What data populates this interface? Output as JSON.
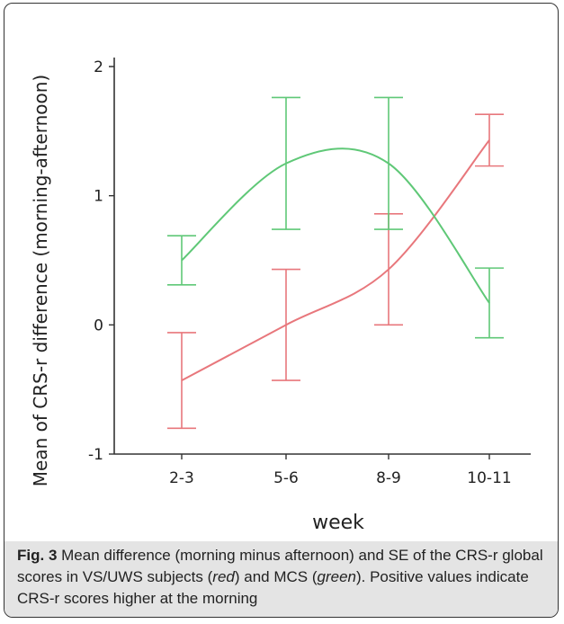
{
  "chart_data": {
    "type": "line",
    "categories": [
      "2-3",
      "5-6",
      "8-9",
      "10-11"
    ],
    "xlabel": "week",
    "ylabel": "Mean of CRS-r difference (morning-afternoon)",
    "ylim": [
      -1,
      2
    ],
    "yticks": [
      "-1",
      "0",
      "1",
      "2"
    ],
    "grid": false,
    "series": [
      {
        "color": "#e8777c",
        "values": [
          -0.43,
          0.0,
          0.43,
          1.43
        ],
        "err_low": [
          -0.8,
          -0.43,
          0.0,
          1.23
        ],
        "err_high": [
          -0.06,
          0.43,
          0.86,
          1.63
        ]
      },
      {
        "color": "#5fc877",
        "values": [
          0.5,
          1.25,
          1.25,
          0.17
        ],
        "err_low": [
          0.31,
          0.74,
          0.74,
          -0.1
        ],
        "err_high": [
          0.69,
          1.76,
          1.76,
          0.44
        ]
      }
    ]
  },
  "caption": {
    "fig_label": "Fig. 3",
    "part1": " Mean difference (morning minus afternoon) and SE of the CRS-r global scores in VS/UWS subjects (",
    "red_word": "red",
    "part2": ") and MCS (",
    "green_word": "green",
    "part3": "). Positive values indicate CRS-r scores higher at the morning"
  }
}
